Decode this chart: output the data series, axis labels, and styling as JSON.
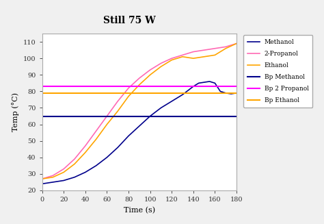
{
  "title": "Still 75 W",
  "xlabel": "Time (s)",
  "ylabel": "Temp (°C)",
  "xlim": [
    0,
    180
  ],
  "ylim": [
    20,
    115
  ],
  "xticks": [
    0,
    20,
    40,
    60,
    80,
    100,
    120,
    140,
    160,
    180
  ],
  "yticks": [
    20,
    30,
    40,
    50,
    60,
    70,
    80,
    90,
    100,
    110
  ],
  "bp_methanol": 65.0,
  "bp_2propanol": 83.0,
  "bp_ethanol": 79.0,
  "methanol_color": "#00008B",
  "propanol_color": "#FF69B4",
  "ethanol_color": "#FFA500",
  "bp_methanol_color": "#00008B",
  "bp_propanol_color": "#FF00FF",
  "bp_ethanol_color": "#FFA500",
  "methanol_time": [
    0,
    5,
    10,
    20,
    30,
    40,
    50,
    60,
    70,
    80,
    90,
    100,
    110,
    120,
    130,
    140,
    145,
    150,
    155,
    160,
    163,
    165,
    170,
    175,
    180
  ],
  "methanol_temp": [
    24,
    24.5,
    25,
    26,
    28,
    31,
    35,
    40,
    46,
    53,
    59,
    65,
    70,
    74,
    78,
    83,
    85,
    85.5,
    86,
    85,
    82,
    80,
    79,
    78.5,
    79
  ],
  "propanol_time": [
    0,
    5,
    10,
    20,
    30,
    40,
    50,
    60,
    70,
    80,
    90,
    100,
    110,
    120,
    130,
    140,
    150,
    160,
    170,
    175,
    180
  ],
  "propanol_temp": [
    27,
    28,
    29,
    33,
    39,
    47,
    56,
    65,
    74,
    82,
    88,
    93,
    97,
    100,
    102,
    104,
    105,
    106,
    107,
    108,
    109
  ],
  "ethanol_time": [
    0,
    5,
    10,
    20,
    30,
    40,
    50,
    60,
    70,
    80,
    90,
    100,
    110,
    120,
    130,
    140,
    150,
    160,
    170,
    175,
    180
  ],
  "ethanol_temp": [
    27,
    27.5,
    28,
    31,
    36,
    43,
    51,
    60,
    68,
    77,
    84,
    90,
    95,
    99,
    101,
    100,
    101,
    102,
    106,
    107.5,
    109
  ],
  "legend_labels": [
    "Methanol",
    "2-Propanol",
    "Ethanol",
    "Bp Methanol",
    "Bp 2 Propanol",
    "Bp Ethanol"
  ],
  "fig_facecolor": "#f0f0f0",
  "plot_facecolor": "#ffffff"
}
